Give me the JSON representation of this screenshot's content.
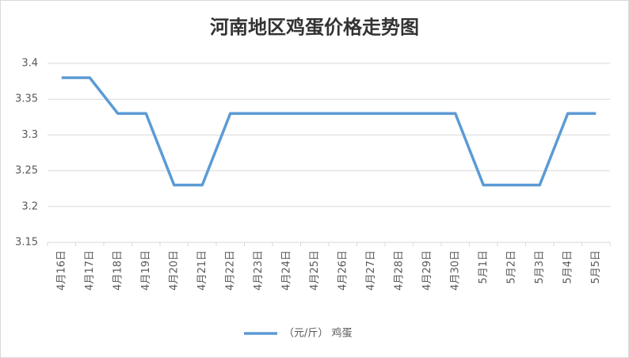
{
  "chart_data": {
    "type": "line",
    "title": "河南地区鸡蛋价格走势图",
    "categories": [
      "4月16日",
      "4月17日",
      "4月18日",
      "4月19日",
      "4月20日",
      "4月21日",
      "4月22日",
      "4月23日",
      "4月24日",
      "4月25日",
      "4月26日",
      "4月27日",
      "4月28日",
      "4月29日",
      "4月30日",
      "5月1日",
      "5月2日",
      "5月3日",
      "5月4日",
      "5月5日"
    ],
    "series": [
      {
        "name": "（元/斤） 鸡蛋",
        "color": "#5b9bd5",
        "values": [
          3.38,
          3.38,
          3.33,
          3.33,
          3.23,
          3.23,
          3.33,
          3.33,
          3.33,
          3.33,
          3.33,
          3.33,
          3.33,
          3.33,
          3.33,
          3.23,
          3.23,
          3.23,
          3.33,
          3.33
        ]
      }
    ],
    "ylim": [
      3.15,
      3.4
    ],
    "yticks": [
      3.15,
      3.2,
      3.25,
      3.3,
      3.35,
      3.4
    ],
    "grid": true,
    "legend": "bottom"
  }
}
